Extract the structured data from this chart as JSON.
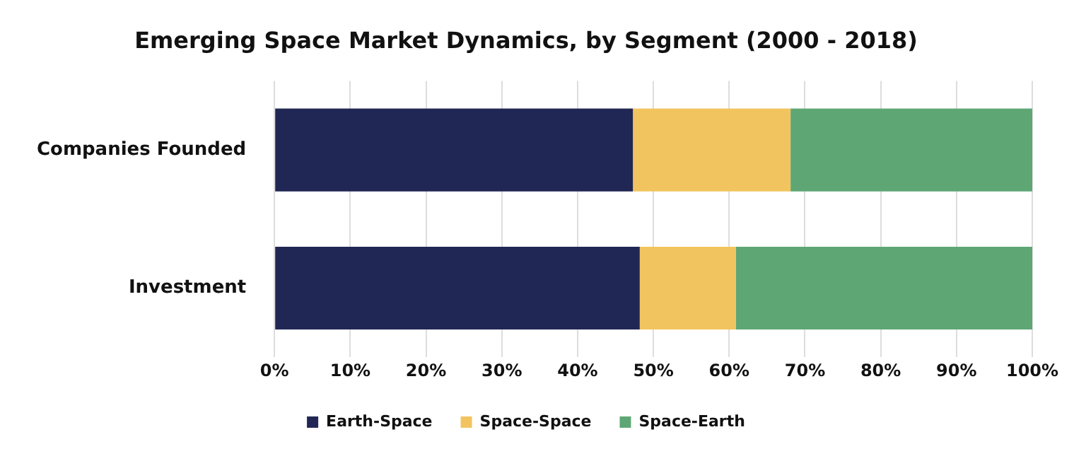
{
  "chart_data": {
    "type": "bar",
    "orientation": "horizontal",
    "stacked": true,
    "title": "Emerging Space Market Dynamics, by Segment (2000 - 2018)",
    "categories": [
      "Companies Founded",
      "Investment"
    ],
    "series": [
      {
        "name": "Earth-Space",
        "color": "#212754",
        "values": [
          47.3,
          48.2
        ]
      },
      {
        "name": "Space-Space",
        "color": "#f2c45f",
        "values": [
          20.8,
          12.7
        ]
      },
      {
        "name": "Space-Earth",
        "color": "#5ea775",
        "values": [
          31.9,
          39.1
        ]
      }
    ],
    "xlim": [
      0,
      100
    ],
    "xticks": [
      {
        "value": 0,
        "label": "0%"
      },
      {
        "value": 10,
        "label": "10%"
      },
      {
        "value": 20,
        "label": "20%"
      },
      {
        "value": 30,
        "label": "30%"
      },
      {
        "value": 40,
        "label": "40%"
      },
      {
        "value": 50,
        "label": "50%"
      },
      {
        "value": 60,
        "label": "60%"
      },
      {
        "value": 70,
        "label": "70%"
      },
      {
        "value": 80,
        "label": "80%"
      },
      {
        "value": 90,
        "label": "90%"
      },
      {
        "value": 100,
        "label": "100%"
      }
    ],
    "grid": "x",
    "legend": "bottom"
  }
}
